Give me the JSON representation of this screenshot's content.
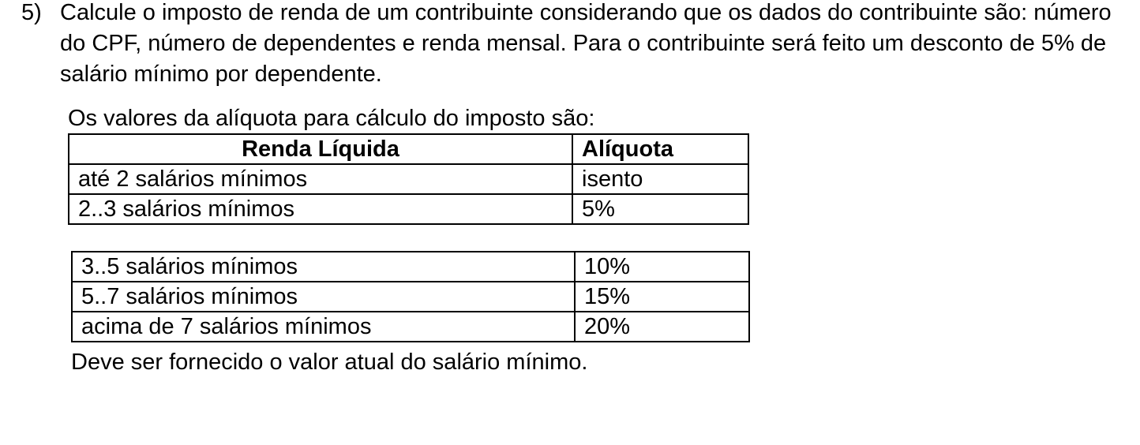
{
  "question": {
    "number": "5)",
    "text": "Calcule o imposto de renda de um contribuinte considerando que os dados do contribuinte são: número do CPF, número de dependentes e renda mensal.  Para o contribuinte será feito um desconto de 5% de salário mínimo por dependente."
  },
  "intro": "Os valores da alíquota para cálculo do imposto são:",
  "table": {
    "headers": [
      "Renda Líquida",
      "Alíquota"
    ],
    "rows_top": [
      [
        "até 2 salários mínimos",
        "isento"
      ],
      [
        "2..3 salários mínimos",
        "5%"
      ]
    ],
    "rows_bottom": [
      [
        "3..5 salários mínimos",
        "10%"
      ],
      [
        "5..7 salários mínimos",
        "15%"
      ],
      [
        "acima de 7 salários mínimos",
        "20%"
      ]
    ]
  },
  "footer": "Deve ser fornecido o valor atual do salário mínimo."
}
